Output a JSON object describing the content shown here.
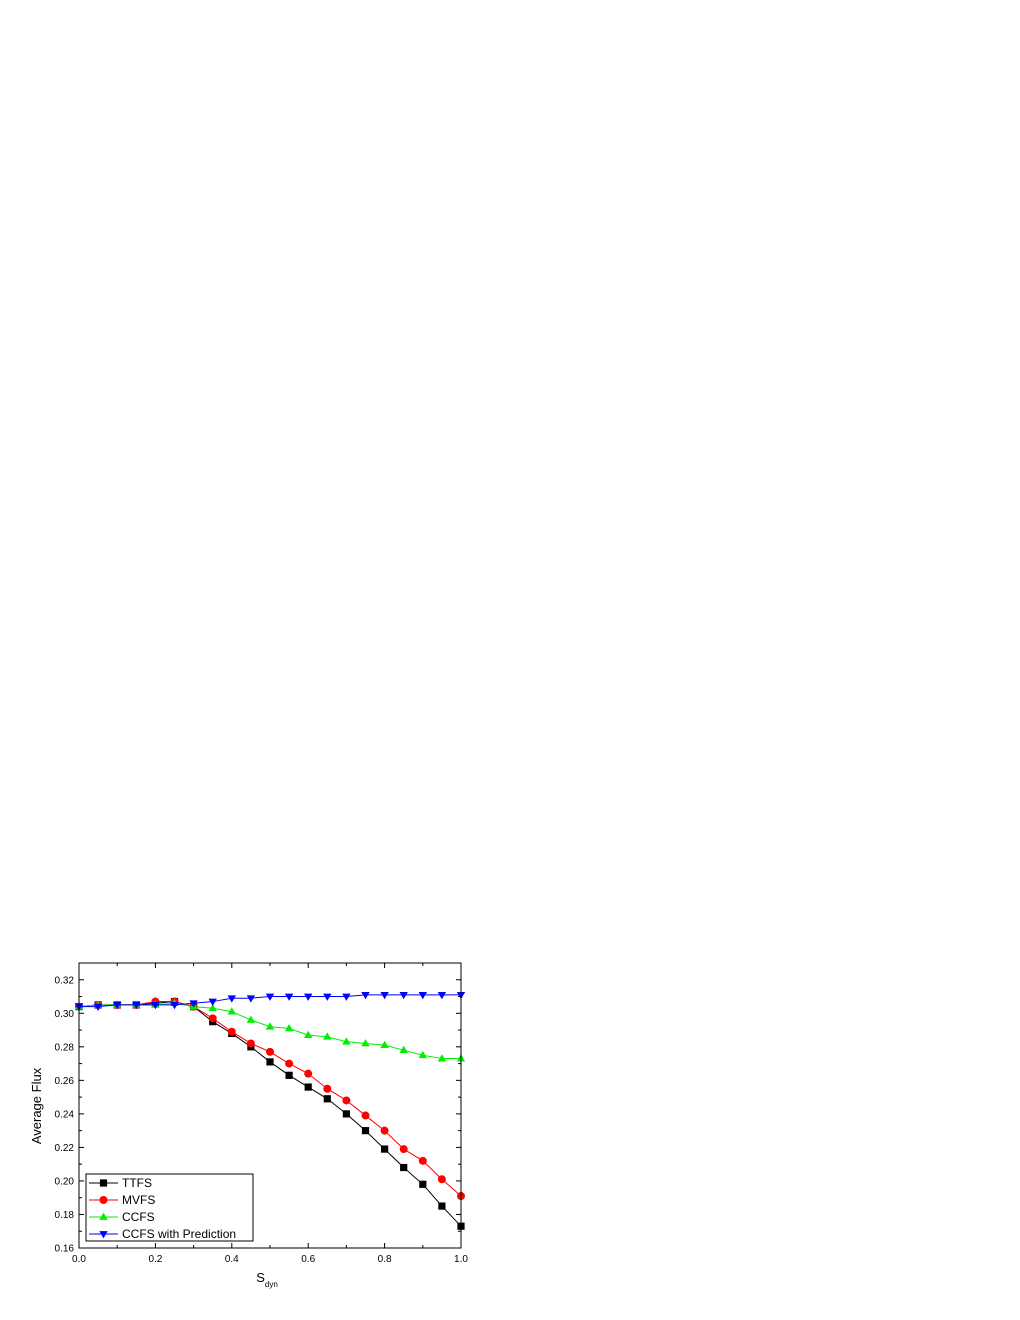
{
  "chart_data": {
    "type": "line",
    "title": "",
    "xlabel": "S",
    "xlabel_sub": "dyn",
    "ylabel": "Average Flux",
    "xlim": [
      0.0,
      1.0
    ],
    "ylim": [
      0.16,
      0.33
    ],
    "xticks": [
      "0.0",
      "0.2",
      "0.4",
      "0.6",
      "0.8",
      "1.0"
    ],
    "yticks": [
      "0.16",
      "0.18",
      "0.20",
      "0.22",
      "0.24",
      "0.26",
      "0.28",
      "0.30",
      "0.32"
    ],
    "grid": false,
    "legend_position": "bottom-left",
    "x": [
      0.0,
      0.05,
      0.1,
      0.15,
      0.2,
      0.25,
      0.3,
      0.35,
      0.4,
      0.45,
      0.5,
      0.55,
      0.6,
      0.65,
      0.7,
      0.75,
      0.8,
      0.85,
      0.9,
      0.95,
      1.0
    ],
    "series": [
      {
        "name": "TTFS",
        "color": "#000000",
        "marker": "square",
        "values": [
          0.304,
          0.305,
          0.305,
          0.305,
          0.306,
          0.307,
          0.304,
          0.295,
          0.288,
          0.28,
          0.271,
          0.263,
          0.256,
          0.249,
          0.24,
          0.23,
          0.219,
          0.208,
          0.198,
          0.185,
          0.173
        ]
      },
      {
        "name": "MVFS",
        "color": "#ff0000",
        "marker": "circle",
        "values": [
          0.304,
          0.305,
          0.305,
          0.305,
          0.307,
          0.307,
          0.304,
          0.297,
          0.289,
          0.282,
          0.277,
          0.27,
          0.264,
          0.255,
          0.248,
          0.239,
          0.23,
          0.219,
          0.212,
          0.201,
          0.191
        ]
      },
      {
        "name": "CCFS",
        "color": "#00ee00",
        "marker": "triangle-up",
        "values": [
          0.304,
          0.305,
          0.305,
          0.305,
          0.305,
          0.306,
          0.304,
          0.303,
          0.301,
          0.296,
          0.292,
          0.291,
          0.287,
          0.286,
          0.283,
          0.282,
          0.281,
          0.278,
          0.275,
          0.273,
          0.273
        ]
      },
      {
        "name": "CCFS with Prediction",
        "color": "#0000ff",
        "marker": "triangle-down",
        "values": [
          0.304,
          0.304,
          0.305,
          0.305,
          0.305,
          0.305,
          0.306,
          0.307,
          0.309,
          0.309,
          0.31,
          0.31,
          0.31,
          0.31,
          0.31,
          0.311,
          0.311,
          0.311,
          0.311,
          0.311,
          0.311
        ]
      }
    ]
  }
}
